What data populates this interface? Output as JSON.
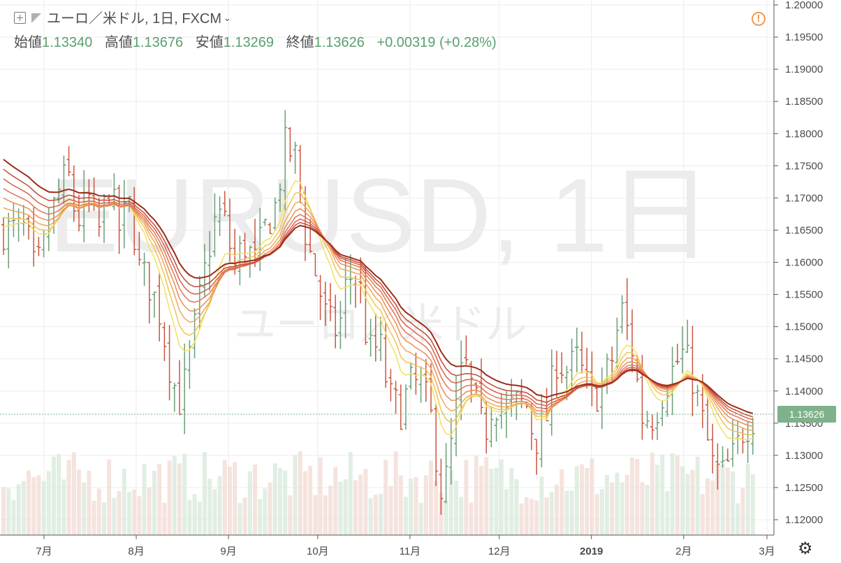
{
  "header": {
    "symbol_title": "ユーロ／米ドル, 1日, FXCM",
    "chevron": "⌄",
    "open_label": "始値",
    "open_value": "1.13340",
    "high_label": "高値",
    "high_value": "1.13676",
    "low_label": "安値",
    "low_value": "1.13269",
    "close_label": "終値",
    "close_value": "1.13626",
    "change": "+0.00319 (+0.28%)"
  },
  "warning_icon": "!",
  "settings_icon": "gear-icon",
  "watermark": {
    "symbol": "EURUSD, 1日",
    "name": "ユーロ／米ドル"
  },
  "colors": {
    "up": "#6a9e78",
    "down": "#c9553f",
    "ribbon_dark": "#9b2d1b",
    "ribbon_light": "#f3e15e",
    "price_tag": "#7fb18a"
  },
  "chart_data": {
    "type": "candlestick",
    "title": "ユーロ／米ドル, 1日, FXCM",
    "last_price": "1.13626",
    "y_ticks": [
      "1.20000",
      "1.19500",
      "1.19000",
      "1.18500",
      "1.18000",
      "1.17500",
      "1.17000",
      "1.16500",
      "1.16000",
      "1.15500",
      "1.15000",
      "1.14500",
      "1.14000",
      "1.13500",
      "1.13000",
      "1.12500",
      "1.12000"
    ],
    "x_ticks": [
      {
        "label": "7月",
        "date": "2018-07-01"
      },
      {
        "label": "8月",
        "date": "2018-08-01"
      },
      {
        "label": "9月",
        "date": "2018-09-01"
      },
      {
        "label": "10月",
        "date": "2018-10-01"
      },
      {
        "label": "11月",
        "date": "2018-11-01"
      },
      {
        "label": "12月",
        "date": "2018-12-01"
      },
      {
        "label": "2019",
        "date": "2019-01-01"
      },
      {
        "label": "2月",
        "date": "2019-02-01"
      },
      {
        "label": "3月",
        "date": "2019-03-01"
      }
    ],
    "ylim": [
      1.1175,
      1.2005
    ],
    "close_series": [
      {
        "date": "2018-06-25",
        "close": 1.165
      },
      {
        "date": "2018-06-28",
        "close": 1.158
      },
      {
        "date": "2018-07-02",
        "close": 1.164
      },
      {
        "date": "2018-07-05",
        "close": 1.17
      },
      {
        "date": "2018-07-09",
        "close": 1.174
      },
      {
        "date": "2018-07-12",
        "close": 1.166
      },
      {
        "date": "2018-07-16",
        "close": 1.17
      },
      {
        "date": "2018-07-19",
        "close": 1.164
      },
      {
        "date": "2018-07-23",
        "close": 1.172
      },
      {
        "date": "2018-07-26",
        "close": 1.165
      },
      {
        "date": "2018-07-30",
        "close": 1.169
      },
      {
        "date": "2018-08-02",
        "close": 1.159
      },
      {
        "date": "2018-08-06",
        "close": 1.156
      },
      {
        "date": "2018-08-09",
        "close": 1.152
      },
      {
        "date": "2018-08-13",
        "close": 1.142
      },
      {
        "date": "2018-08-16",
        "close": 1.138
      },
      {
        "date": "2018-08-20",
        "close": 1.148
      },
      {
        "date": "2018-08-23",
        "close": 1.156
      },
      {
        "date": "2018-08-27",
        "close": 1.166
      },
      {
        "date": "2018-08-30",
        "close": 1.168
      },
      {
        "date": "2018-09-03",
        "close": 1.159
      },
      {
        "date": "2018-09-06",
        "close": 1.163
      },
      {
        "date": "2018-09-10",
        "close": 1.16
      },
      {
        "date": "2018-09-13",
        "close": 1.165
      },
      {
        "date": "2018-09-17",
        "close": 1.169
      },
      {
        "date": "2018-09-20",
        "close": 1.178
      },
      {
        "date": "2018-09-24",
        "close": 1.176
      },
      {
        "date": "2018-09-27",
        "close": 1.164
      },
      {
        "date": "2018-10-01",
        "close": 1.157
      },
      {
        "date": "2018-10-04",
        "close": 1.151
      },
      {
        "date": "2018-10-08",
        "close": 1.149
      },
      {
        "date": "2018-10-11",
        "close": 1.158
      },
      {
        "date": "2018-10-15",
        "close": 1.157
      },
      {
        "date": "2018-10-18",
        "close": 1.146
      },
      {
        "date": "2018-10-22",
        "close": 1.147
      },
      {
        "date": "2018-10-25",
        "close": 1.139
      },
      {
        "date": "2018-10-29",
        "close": 1.137
      },
      {
        "date": "2018-11-01",
        "close": 1.141
      },
      {
        "date": "2018-11-05",
        "close": 1.141
      },
      {
        "date": "2018-11-08",
        "close": 1.136
      },
      {
        "date": "2018-11-12",
        "close": 1.123
      },
      {
        "date": "2018-11-15",
        "close": 1.132
      },
      {
        "date": "2018-11-19",
        "close": 1.145
      },
      {
        "date": "2018-11-22",
        "close": 1.14
      },
      {
        "date": "2018-11-26",
        "close": 1.133
      },
      {
        "date": "2018-11-29",
        "close": 1.139
      },
      {
        "date": "2018-12-03",
        "close": 1.136
      },
      {
        "date": "2018-12-06",
        "close": 1.138
      },
      {
        "date": "2018-12-10",
        "close": 1.138
      },
      {
        "date": "2018-12-13",
        "close": 1.132
      },
      {
        "date": "2018-12-17",
        "close": 1.136
      },
      {
        "date": "2018-12-20",
        "close": 1.145
      },
      {
        "date": "2018-12-24",
        "close": 1.143
      },
      {
        "date": "2018-12-27",
        "close": 1.145
      },
      {
        "date": "2019-01-01",
        "close": 1.139
      },
      {
        "date": "2019-01-04",
        "close": 1.14
      },
      {
        "date": "2019-01-08",
        "close": 1.145
      },
      {
        "date": "2019-01-11",
        "close": 1.153
      },
      {
        "date": "2019-01-15",
        "close": 1.146
      },
      {
        "date": "2019-01-18",
        "close": 1.136
      },
      {
        "date": "2019-01-22",
        "close": 1.136
      },
      {
        "date": "2019-01-25",
        "close": 1.14
      },
      {
        "date": "2019-01-29",
        "close": 1.144
      },
      {
        "date": "2019-02-01",
        "close": 1.146
      },
      {
        "date": "2019-02-04",
        "close": 1.142
      },
      {
        "date": "2019-02-07",
        "close": 1.136
      },
      {
        "date": "2019-02-11",
        "close": 1.128
      },
      {
        "date": "2019-02-14",
        "close": 1.127
      },
      {
        "date": "2019-02-18",
        "close": 1.13
      },
      {
        "date": "2019-02-21",
        "close": 1.134
      },
      {
        "date": "2019-02-25",
        "close": 1.1363
      }
    ]
  }
}
